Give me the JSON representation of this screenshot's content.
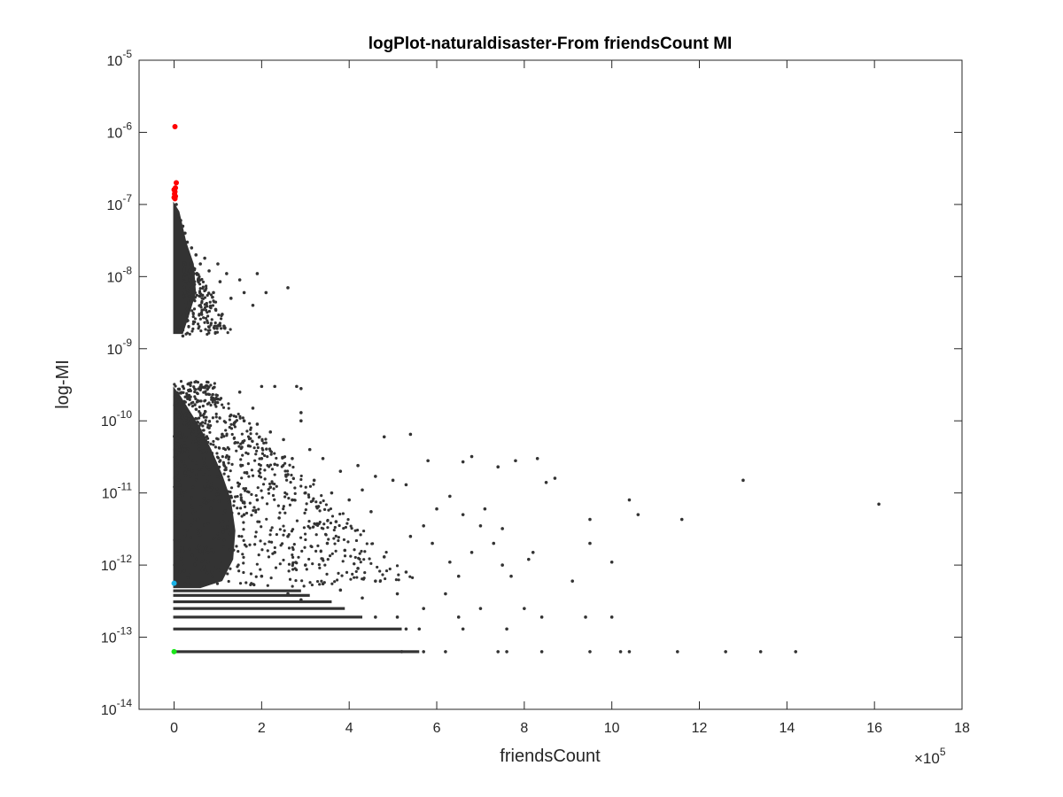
{
  "chart_data": {
    "type": "scatter",
    "title": "logPlot-naturaldisaster-From friendsCount MI",
    "xlabel": "friendsCount",
    "ylabel": "log-MI",
    "x_multiplier": {
      "base": "×10",
      "exponent": "5"
    },
    "xlim": [
      -0.8,
      18
    ],
    "ylim": [
      1e-14,
      1e-05
    ],
    "yscale": "log",
    "grid": false,
    "x_ticks": [
      {
        "value": 0,
        "label": "0"
      },
      {
        "value": 2,
        "label": "2"
      },
      {
        "value": 4,
        "label": "4"
      },
      {
        "value": 6,
        "label": "6"
      },
      {
        "value": 8,
        "label": "8"
      },
      {
        "value": 10,
        "label": "10"
      },
      {
        "value": 12,
        "label": "12"
      },
      {
        "value": 14,
        "label": "14"
      },
      {
        "value": 16,
        "label": "16"
      },
      {
        "value": 18,
        "label": "18"
      }
    ],
    "y_ticks": [
      {
        "exp": -14,
        "label": "10",
        "sup": "-14"
      },
      {
        "exp": -13,
        "label": "10",
        "sup": "-13"
      },
      {
        "exp": -12,
        "label": "10",
        "sup": "-12"
      },
      {
        "exp": -11,
        "label": "10",
        "sup": "-11"
      },
      {
        "exp": -10,
        "label": "10",
        "sup": "-10"
      },
      {
        "exp": -9,
        "label": "10",
        "sup": "-9"
      },
      {
        "exp": -8,
        "label": "10",
        "sup": "-8"
      },
      {
        "exp": -7,
        "label": "10",
        "sup": "-7"
      },
      {
        "exp": -6,
        "label": "10",
        "sup": "-6"
      },
      {
        "exp": -5,
        "label": "10",
        "sup": "-5"
      }
    ],
    "colors": {
      "main": "#333333",
      "top": "#ff0000",
      "mid": "#1ab2e6",
      "low": "#19e619",
      "axis": "#262626"
    },
    "series": [
      {
        "color": "#ff0000",
        "points": [
          [
            0.02,
            1.2e-06
          ],
          [
            0.05,
            2e-07
          ],
          [
            0.03,
            1.7e-07
          ],
          [
            0.0,
            1.6e-07
          ],
          [
            0.02,
            1.5e-07
          ],
          [
            0.01,
            1.4e-07
          ],
          [
            0.03,
            1.3e-07
          ],
          [
            0.0,
            1.25e-07
          ],
          [
            0.02,
            1.2e-07
          ]
        ]
      },
      {
        "color": "#1ab2e6",
        "points": [
          [
            0.0,
            5.6e-13
          ]
        ]
      },
      {
        "color": "#19e619",
        "points": [
          [
            0.0,
            6.3e-14
          ]
        ]
      },
      {
        "color": "#333333",
        "points": [
          [
            0.05,
            1e-07
          ],
          [
            0.1,
            7e-08
          ],
          [
            0.15,
            6e-08
          ],
          [
            0.2,
            5e-08
          ],
          [
            0.25,
            4e-08
          ],
          [
            0.3,
            3e-08
          ],
          [
            0.4,
            2.5e-08
          ],
          [
            0.5,
            2e-08
          ],
          [
            0.6,
            1.5e-08
          ],
          [
            0.7,
            1.8e-08
          ],
          [
            0.8,
            1.2e-08
          ],
          [
            1.0,
            1.5e-08
          ],
          [
            1.2,
            1.1e-08
          ],
          [
            1.5,
            9e-09
          ],
          [
            1.9,
            1.1e-08
          ],
          [
            2.1,
            6e-09
          ],
          [
            2.6,
            7e-09
          ],
          [
            1.8,
            4e-09
          ],
          [
            1.1,
            3e-09
          ],
          [
            0.8,
            2e-09
          ],
          [
            0.3,
            2.5e-09
          ],
          [
            0.2,
            1.5e-09
          ],
          [
            0.6,
            4e-09
          ],
          [
            0.9,
            6e-09
          ],
          [
            1.3,
            5e-09
          ],
          [
            1.6,
            6e-09
          ],
          [
            0.45,
            8e-09
          ],
          [
            0.35,
            1.2e-08
          ],
          [
            0.55,
            9e-09
          ],
          [
            0.65,
            5.5e-09
          ],
          [
            0.95,
            3.5e-09
          ],
          [
            1.05,
            8.5e-09
          ],
          [
            0.25,
            6e-09
          ],
          [
            0.15,
            3e-09
          ],
          [
            0.1,
            2e-09
          ],
          [
            0.5,
            3.5e-10
          ],
          [
            0.2,
            3e-10
          ],
          [
            1.0,
            2e-10
          ],
          [
            1.5,
            2.5e-10
          ],
          [
            2.0,
            3e-10
          ],
          [
            2.3,
            3e-10
          ],
          [
            2.8,
            3e-10
          ],
          [
            2.9,
            2.8e-10
          ],
          [
            2.9,
            1.3e-10
          ],
          [
            2.9,
            1e-10
          ],
          [
            1.8,
            1.5e-10
          ],
          [
            1.3,
            1.2e-10
          ],
          [
            1.6,
            1e-10
          ],
          [
            1.9,
            9e-11
          ],
          [
            2.2,
            7e-11
          ],
          [
            2.5,
            5.5e-11
          ],
          [
            3.1,
            4e-11
          ],
          [
            2.7,
            3e-11
          ],
          [
            3.4,
            3e-11
          ],
          [
            3.8,
            2e-11
          ],
          [
            4.2,
            2.4e-11
          ],
          [
            4.6,
            1.7e-11
          ],
          [
            5.0,
            1.5e-11
          ],
          [
            5.3,
            1.3e-11
          ],
          [
            4.3,
            1.1e-11
          ],
          [
            3.6,
            1e-11
          ],
          [
            3.2,
            1.5e-11
          ],
          [
            2.6,
            1.8e-11
          ],
          [
            2.3,
            2.5e-11
          ],
          [
            2.0,
            3e-11
          ],
          [
            1.7,
            4.5e-11
          ],
          [
            1.4,
            5e-11
          ],
          [
            1.1,
            6.5e-11
          ],
          [
            0.8,
            8e-11
          ],
          [
            0.6,
            9e-11
          ],
          [
            4.8,
            6e-11
          ],
          [
            5.4,
            6.5e-11
          ],
          [
            5.8,
            2.8e-11
          ],
          [
            6.6,
            2.7e-11
          ],
          [
            6.8,
            3.2e-11
          ],
          [
            7.4,
            2.3e-11
          ],
          [
            7.8,
            2.8e-11
          ],
          [
            8.3,
            3e-11
          ],
          [
            8.7,
            1.6e-11
          ],
          [
            8.5,
            1.4e-11
          ],
          [
            13.0,
            1.5e-11
          ],
          [
            10.4,
            8e-12
          ],
          [
            10.6,
            5e-12
          ],
          [
            11.6,
            4.3e-12
          ],
          [
            16.1,
            7e-12
          ],
          [
            9.5,
            4.3e-12
          ],
          [
            9.5,
            2e-12
          ],
          [
            9.1,
            6e-13
          ],
          [
            10.0,
            1.1e-12
          ],
          [
            8.2,
            1.5e-12
          ],
          [
            8.1,
            1.2e-12
          ],
          [
            7.1,
            6e-12
          ],
          [
            7.5,
            3.2e-12
          ],
          [
            7.3,
            2e-12
          ],
          [
            7.0,
            3.5e-12
          ],
          [
            6.6,
            5e-12
          ],
          [
            6.3,
            9e-12
          ],
          [
            6.0,
            6e-12
          ],
          [
            5.7,
            3.5e-12
          ],
          [
            5.4,
            2.5e-12
          ],
          [
            5.9,
            2e-12
          ],
          [
            6.3,
            1.1e-12
          ],
          [
            6.8,
            1.5e-12
          ],
          [
            7.7,
            7e-13
          ],
          [
            7.5,
            1e-12
          ],
          [
            6.5,
            7e-13
          ],
          [
            6.2,
            4e-13
          ],
          [
            5.3,
            8e-13
          ],
          [
            4.8,
            1.3e-12
          ],
          [
            4.5,
            5.5e-12
          ],
          [
            4.0,
            8e-12
          ],
          [
            3.7,
            4e-12
          ],
          [
            3.3,
            6.5e-12
          ],
          [
            3.0,
            1e-11
          ],
          [
            2.7,
            8e-12
          ],
          [
            2.4,
            4.5e-12
          ],
          [
            2.2,
            1.2e-11
          ],
          [
            1.9,
            8e-12
          ],
          [
            1.6,
            5e-12
          ],
          [
            1.3,
            9e-12
          ],
          [
            3.5,
            2e-12
          ],
          [
            3.9,
            1.6e-12
          ],
          [
            4.2,
            9e-13
          ],
          [
            4.6,
            6e-13
          ],
          [
            5.1,
            4e-13
          ],
          [
            3.0,
            1e-12
          ],
          [
            2.6,
            2.5e-12
          ],
          [
            2.3,
            1.5e-12
          ],
          [
            2.0,
            7e-13
          ],
          [
            3.4,
            5.5e-13
          ],
          [
            3.8,
            4.5e-13
          ],
          [
            4.3,
            3.5e-13
          ],
          [
            2.9,
            3.3e-13
          ],
          [
            2.6,
            4e-13
          ],
          [
            0.9,
            1.5e-12
          ],
          [
            8.4,
            1.9e-13
          ],
          [
            9.4,
            1.9e-13
          ],
          [
            10.0,
            1.9e-13
          ],
          [
            8.0,
            2.5e-13
          ],
          [
            7.0,
            2.5e-13
          ],
          [
            5.7,
            2.5e-13
          ],
          [
            5.1,
            1.9e-13
          ],
          [
            4.6,
            1.9e-13
          ],
          [
            6.5,
            1.9e-13
          ],
          [
            7.6,
            1.3e-13
          ],
          [
            6.6,
            1.3e-13
          ],
          [
            5.6,
            1.3e-13
          ],
          [
            5.3,
            1.3e-13
          ],
          [
            6.2,
            6.3e-14
          ],
          [
            7.4,
            6.3e-14
          ],
          [
            7.6,
            6.3e-14
          ],
          [
            8.4,
            6.3e-14
          ],
          [
            9.5,
            6.3e-14
          ],
          [
            10.2,
            6.3e-14
          ],
          [
            10.4,
            6.3e-14
          ],
          [
            11.5,
            6.3e-14
          ],
          [
            12.6,
            6.3e-14
          ],
          [
            13.4,
            6.3e-14
          ],
          [
            14.2,
            6.3e-14
          ],
          [
            5.7,
            6.3e-14
          ],
          [
            5.2,
            6.3e-14
          ]
        ],
        "dense_bands": [
          {
            "y": 4.4e-13,
            "x_max": 2.9
          },
          {
            "y": 3.8e-13,
            "x_max": 3.1
          },
          {
            "y": 3.1e-13,
            "x_max": 3.6
          },
          {
            "y": 2.5e-13,
            "x_max": 3.9
          },
          {
            "y": 1.9e-13,
            "x_max": 4.3
          },
          {
            "y": 1.3e-13,
            "x_max": 5.2
          },
          {
            "y": 6.3e-14,
            "x_max": 5.6
          }
        ]
      }
    ]
  }
}
